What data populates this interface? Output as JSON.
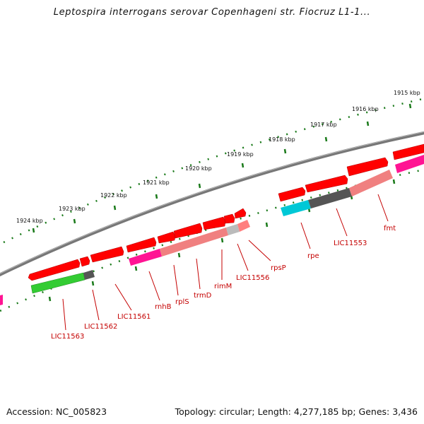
{
  "title": "Leptospira interrogans serovar Copenhageni str. Fiocruz L1-1...",
  "footer": {
    "accession": "Accession: NC_005823",
    "meta": "Topology: circular; Length: 4,277,185 bp; Genes: 3,436"
  },
  "colors": {
    "backbone": "#777777",
    "ticks": "#1a7a1a",
    "gene_red": "#ff0000",
    "label_red": "#c40000"
  },
  "kbp_ticks": [
    "1915 kbp",
    "1916 kbp",
    "1917 kbp",
    "1918 kbp",
    "1919 kbp",
    "1920 kbp",
    "1921 kbp",
    "1922 kbp",
    "1923 kbp",
    "1924 kbp"
  ],
  "gene_labels": [
    "LIC11563",
    "LIC11562",
    "LIC11561",
    "rnhB",
    "rplS",
    "trmD",
    "rimM",
    "LIC11556",
    "rpsP",
    "rpe",
    "LIC11553",
    "fmt"
  ]
}
